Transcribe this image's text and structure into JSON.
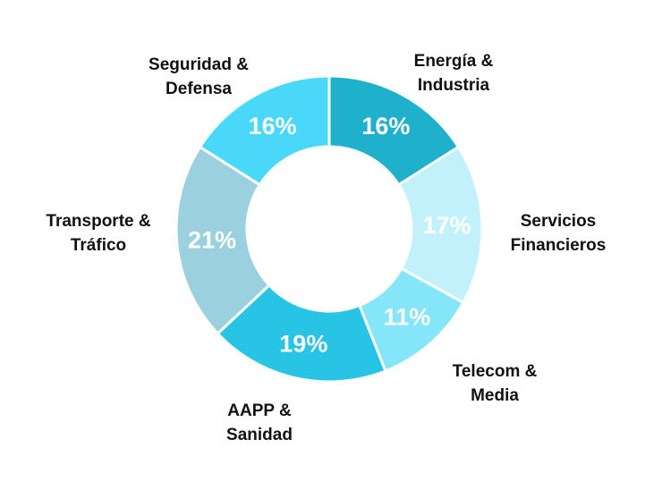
{
  "chart_data": {
    "type": "pie",
    "donut": true,
    "title": "",
    "slices": [
      {
        "label_lines": [
          "Energía &",
          "Industria"
        ],
        "value": 16,
        "value_label": "16%",
        "color": "#1fb0cc"
      },
      {
        "label_lines": [
          "Servicios",
          "Financieros"
        ],
        "value": 17,
        "value_label": "17%",
        "color": "#c3f1fb"
      },
      {
        "label_lines": [
          "Telecom &",
          "Media"
        ],
        "value": 11,
        "value_label": "11%",
        "color": "#85e5f9"
      },
      {
        "label_lines": [
          "AAPP &",
          "Sanidad"
        ],
        "value": 19,
        "value_label": "19%",
        "color": "#27c4e6"
      },
      {
        "label_lines": [
          "Transporte &",
          "Tráfico"
        ],
        "value": 21,
        "value_label": "21%",
        "color": "#9bd0de"
      },
      {
        "label_lines": [
          "Seguridad &",
          "Defensa"
        ],
        "value": 16,
        "value_label": "16%",
        "color": "#49d8f9"
      }
    ]
  }
}
